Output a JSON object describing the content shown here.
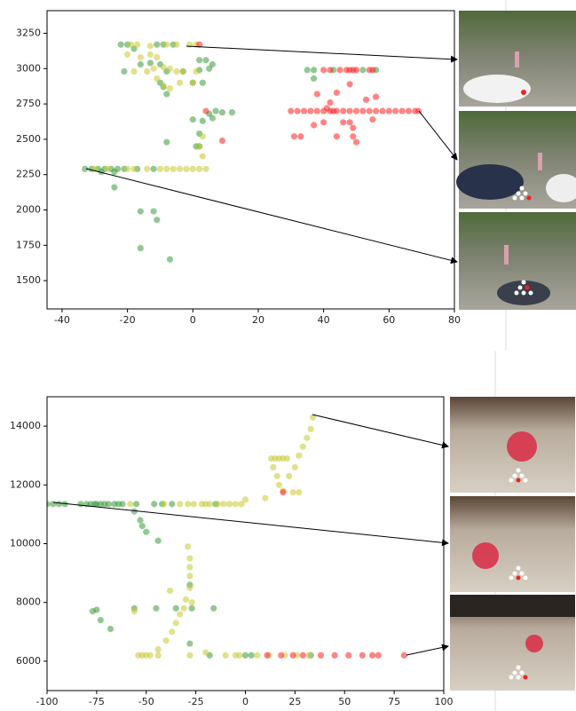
{
  "chart_data": [
    {
      "type": "scatter",
      "xlim": [
        -44.6,
        80
      ],
      "ylim": [
        1300,
        3410
      ],
      "xticks": [
        -40,
        -20,
        0,
        20,
        40,
        60,
        80
      ],
      "yticks": [
        1500,
        1750,
        2000,
        2250,
        2500,
        2750,
        3000,
        3250
      ],
      "series": [
        {
          "color": "#3a9a3a",
          "x": [
            -22,
            -20,
            -18,
            -11,
            -9,
            -6,
            -16,
            -13,
            -21,
            -10,
            -8,
            -3,
            2,
            4,
            2,
            5,
            6,
            0,
            3,
            -10,
            -8,
            -9,
            0,
            3,
            5,
            7,
            6,
            9,
            12,
            2,
            1,
            2,
            -8,
            -33,
            -31,
            -29,
            -27,
            -25,
            -23,
            -21,
            -17,
            -12,
            -28,
            -24,
            -24,
            -12,
            -16,
            -11,
            -16,
            -7,
            35,
            37,
            43,
            52,
            56,
            37
          ],
          "values": [
            3170,
            3170,
            3140,
            3170,
            3170,
            3170,
            3030,
            3040,
            2980,
            3030,
            2980,
            2980,
            3060,
            3060,
            2990,
            3000,
            3030,
            2900,
            2900,
            2900,
            2820,
            2870,
            2640,
            2630,
            2680,
            2700,
            2650,
            2690,
            2690,
            2540,
            2450,
            2450,
            2480,
            2290,
            2290,
            2290,
            2290,
            2290,
            2290,
            2290,
            2290,
            2290,
            2270,
            2160,
            2270,
            1990,
            1990,
            1930,
            1730,
            1650,
            2990,
            2990,
            2990,
            2990,
            2990,
            2930
          ]
        },
        {
          "color": "#c8c832",
          "x": [
            -19,
            -17,
            -13,
            -8,
            -5,
            -1,
            1,
            -20,
            -16,
            -13,
            -11,
            -18,
            -14,
            -12,
            -9,
            -7,
            -5,
            -11,
            -9,
            -7,
            -4,
            -3,
            1,
            0,
            -30,
            -26,
            -20,
            -18,
            -14,
            -10,
            -8,
            -6,
            -4,
            -2,
            0,
            2,
            4,
            3,
            2,
            3
          ],
          "values": [
            3170,
            3170,
            3160,
            3170,
            3170,
            3170,
            3170,
            3100,
            3080,
            3100,
            3080,
            2980,
            2980,
            3000,
            3010,
            3000,
            2980,
            2930,
            2880,
            2860,
            2900,
            2980,
            2980,
            2900,
            2290,
            2290,
            2290,
            2290,
            2290,
            2290,
            2290,
            2290,
            2290,
            2290,
            2290,
            2290,
            2290,
            2380,
            2450,
            2520
          ]
        },
        {
          "color": "#ff2020",
          "x": [
            2,
            4,
            9,
            30,
            32,
            34,
            36,
            38,
            40,
            41,
            42,
            43,
            44,
            46,
            48,
            50,
            52,
            54,
            56,
            58,
            60,
            62,
            64,
            66,
            68,
            69,
            40,
            42,
            45,
            47,
            48,
            49,
            50,
            54,
            55,
            44,
            48,
            53,
            56,
            42,
            37,
            40,
            46,
            48,
            49,
            49,
            50,
            31,
            33,
            44,
            55,
            38
          ],
          "values": [
            3170,
            2700,
            2490,
            2700,
            2700,
            2700,
            2700,
            2700,
            2700,
            2720,
            2700,
            2700,
            2700,
            2700,
            2700,
            2700,
            2700,
            2700,
            2700,
            2700,
            2700,
            2700,
            2700,
            2700,
            2700,
            2700,
            2990,
            2990,
            2990,
            2990,
            2990,
            2990,
            2990,
            2990,
            2990,
            2830,
            2890,
            2780,
            2800,
            2760,
            2600,
            2620,
            2620,
            2620,
            2580,
            2520,
            2480,
            2520,
            2520,
            2520,
            2640,
            2820
          ]
        }
      ]
    },
    {
      "type": "scatter",
      "xlim": [
        -100,
        100
      ],
      "ylim": [
        5000,
        15000
      ],
      "xticks": [
        -100,
        -75,
        -50,
        -25,
        0,
        25,
        50,
        75,
        100
      ],
      "yticks": [
        6000,
        8000,
        10000,
        12000,
        14000
      ],
      "series": [
        {
          "color": "#3a9a3a",
          "x": [
            -100,
            -97,
            -94,
            -91,
            -83,
            -80,
            -78,
            -76,
            -73,
            -71,
            -69,
            -66,
            -64,
            -62,
            -55,
            -56,
            -53,
            -52,
            -50,
            -44,
            -46,
            -42,
            -37,
            -77,
            -75,
            -73,
            -68,
            -56,
            -45,
            -35,
            -27,
            -16,
            -28,
            -28,
            -18,
            0,
            3,
            33,
            -15,
            -75
          ],
          "values": [
            11350,
            11350,
            11350,
            11350,
            11350,
            11350,
            11350,
            11350,
            11350,
            11350,
            11350,
            11350,
            11350,
            11350,
            11350,
            11100,
            10800,
            10600,
            10400,
            10100,
            11350,
            11350,
            11350,
            7700,
            7750,
            7400,
            7100,
            7800,
            7800,
            7800,
            7800,
            7800,
            8600,
            6600,
            6200,
            6200,
            6200,
            6200,
            11350,
            11350
          ]
        },
        {
          "color": "#c8c832",
          "x": [
            -58,
            -41,
            -33,
            -29,
            -26,
            -22,
            -20,
            -18,
            -14,
            -11,
            -8,
            -5,
            -2,
            0,
            10,
            13,
            15,
            17,
            19,
            21,
            14,
            16,
            17,
            19,
            24,
            27,
            22,
            25,
            27,
            29,
            31,
            33,
            34,
            -29,
            -28,
            -28,
            -28,
            -28,
            -30,
            -31,
            -27,
            -33,
            -35,
            -37,
            -40,
            -44,
            -48,
            -50,
            -52,
            -54,
            -44,
            -28,
            -38,
            -56,
            -20,
            -5,
            -10,
            6,
            12,
            20,
            26,
            -3,
            32
          ],
          "values": [
            11350,
            11350,
            11350,
            11350,
            11350,
            11350,
            11350,
            11350,
            11350,
            11350,
            11350,
            11350,
            11350,
            11500,
            11550,
            12900,
            12900,
            12900,
            12900,
            12900,
            12600,
            12300,
            12000,
            11800,
            11750,
            11750,
            12300,
            12600,
            13000,
            13300,
            13600,
            13900,
            14300,
            9900,
            9500,
            9200,
            8900,
            8500,
            8100,
            7800,
            8000,
            7600,
            7300,
            7000,
            6700,
            6400,
            6200,
            6200,
            6200,
            6200,
            6200,
            6200,
            8400,
            7700,
            6300,
            6200,
            6200,
            6200,
            6200,
            6200,
            6200,
            6200,
            6200
          ]
        },
        {
          "color": "#ff2020",
          "x": [
            19,
            11,
            18,
            24,
            29,
            38,
            45,
            52,
            59,
            64,
            67,
            80
          ],
          "values": [
            11750,
            6200,
            6200,
            6200,
            6200,
            6200,
            6200,
            6200,
            6200,
            6200,
            6200,
            6200
          ]
        }
      ]
    }
  ]
}
